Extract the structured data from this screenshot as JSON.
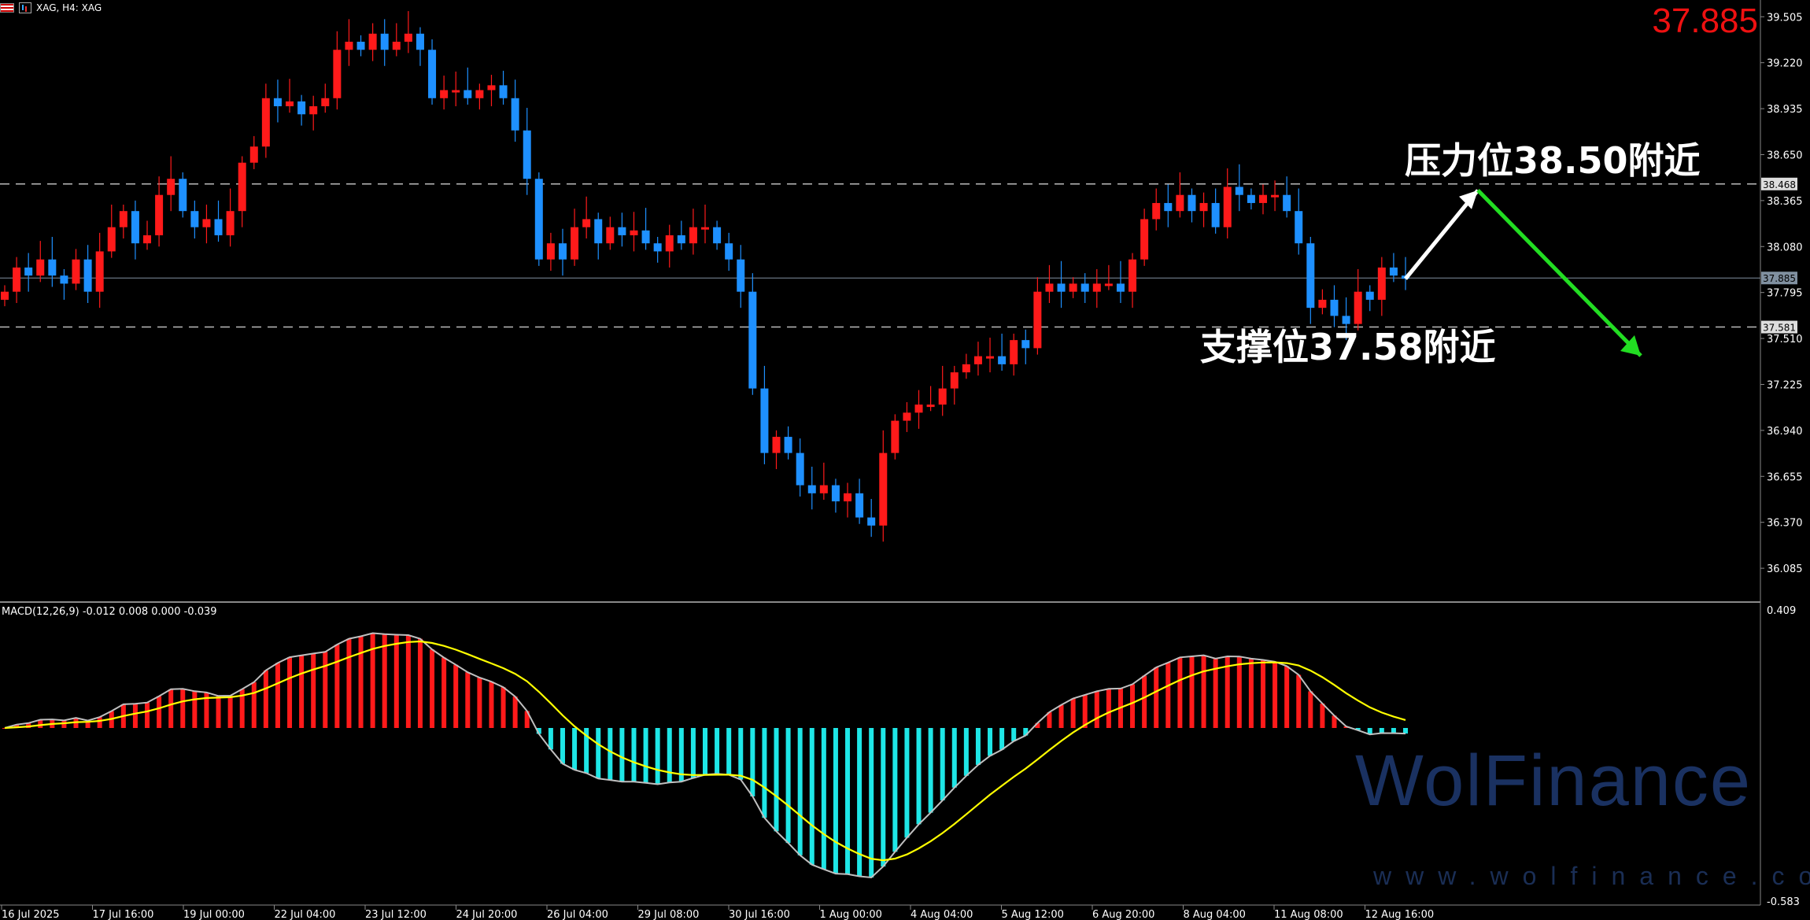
{
  "topbar": {
    "symbol_label": "XAG, H4:  XAG"
  },
  "current_price": "37.885",
  "annotations": {
    "resistance": "压力位38.50附近",
    "support": "支撑位37.58附近"
  },
  "watermark": {
    "brand": "WolFinance",
    "url": "www.wolfinance.com"
  },
  "colors": {
    "bull": "#ff1a1a",
    "bear": "#1e90ff",
    "signal": "#ffff00",
    "macd_line": "#c0c0c0",
    "hist_pos": "#ff1a1a",
    "hist_neg": "#1ee6e6",
    "up_arrow": "#ffffff",
    "down_arrow": "#22dd22"
  },
  "price_axis": {
    "labels": [
      "39.505",
      "39.220",
      "38.935",
      "38.650",
      "38.365",
      "38.080",
      "37.795",
      "37.510",
      "37.225",
      "36.940",
      "36.655",
      "36.370",
      "36.085"
    ],
    "tags": [
      {
        "value": "38.468",
        "kind": "level"
      },
      {
        "value": "37.885",
        "kind": "current"
      },
      {
        "value": "37.581",
        "kind": "level"
      }
    ]
  },
  "macd": {
    "label": "MACD(12,26,9) -0.012 0.008 0.000 -0.039",
    "axis_top": "0.409",
    "axis_bottom": "-0.583"
  },
  "time_axis": [
    "16 Jul 2025",
    "17 Jul 16:00",
    "19 Jul 00:00",
    "22 Jul 04:00",
    "23 Jul 12:00",
    "24 Jul 20:00",
    "26 Jul 04:00",
    "29 Jul 08:00",
    "30 Jul 16:00",
    "1 Aug 00:00",
    "4 Aug 04:00",
    "5 Aug 12:00",
    "6 Aug 20:00",
    "8 Aug 04:00",
    "11 Aug 08:00",
    "12 Aug 16:00"
  ],
  "chart_data": {
    "type": "candlestick",
    "symbol": "XAG",
    "timeframe": "H4",
    "levels": [
      38.468,
      37.885,
      37.581
    ],
    "ylim": [
      35.9,
      39.56
    ],
    "close": [
      37.8,
      37.95,
      37.9,
      38.0,
      37.9,
      37.85,
      38.0,
      37.8,
      38.05,
      38.2,
      38.3,
      38.1,
      38.15,
      38.4,
      38.5,
      38.3,
      38.2,
      38.25,
      38.15,
      38.3,
      38.6,
      38.7,
      39.0,
      38.95,
      38.98,
      38.9,
      38.95,
      39.0,
      39.3,
      39.35,
      39.3,
      39.4,
      39.3,
      39.35,
      39.4,
      39.3,
      39.0,
      39.05,
      39.05,
      39.0,
      39.05,
      39.08,
      39.0,
      38.8,
      38.5,
      38.0,
      38.1,
      38.0,
      38.2,
      38.25,
      38.1,
      38.2,
      38.15,
      38.18,
      38.1,
      38.05,
      38.15,
      38.1,
      38.2,
      38.2,
      38.1,
      38.0,
      37.8,
      37.2,
      36.8,
      36.9,
      36.8,
      36.6,
      36.55,
      36.6,
      36.5,
      36.55,
      36.4,
      36.35,
      36.8,
      37.0,
      37.05,
      37.1,
      37.1,
      37.2,
      37.3,
      37.35,
      37.4,
      37.4,
      37.35,
      37.5,
      37.45,
      37.8,
      37.85,
      37.8,
      37.85,
      37.8,
      37.85,
      37.85,
      37.8,
      38.0,
      38.25,
      38.35,
      38.3,
      38.4,
      38.3,
      38.35,
      38.2,
      38.45,
      38.4,
      38.35,
      38.4,
      38.4,
      38.3,
      38.1,
      37.7,
      37.75,
      37.65,
      37.6,
      37.8,
      37.75,
      37.95,
      37.9,
      37.88
    ]
  }
}
